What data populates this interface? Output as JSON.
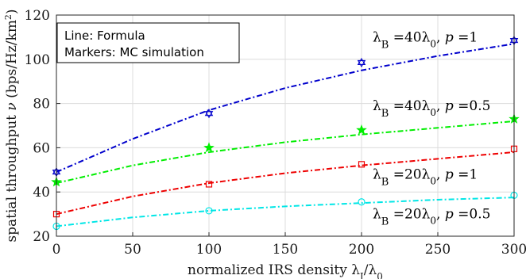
{
  "chart_data": {
    "type": "line",
    "xlabel": "normalized IRS density λ_I/λ_0",
    "ylabel": "spatial throughput ν (bps/Hz/km²)",
    "xlim": [
      0,
      300
    ],
    "ylim": [
      20,
      120
    ],
    "x_ticks": [
      0,
      50,
      100,
      150,
      200,
      250,
      300
    ],
    "y_ticks": [
      20,
      40,
      60,
      80,
      100,
      120
    ],
    "grid": true,
    "legend_box": {
      "lines": [
        "Line: Formula",
        "Markers: MC simulation"
      ],
      "placement": "top-left"
    },
    "x": [
      0,
      50,
      100,
      150,
      200,
      250,
      300
    ],
    "series": [
      {
        "name": "λB = 40λ0, p = 1",
        "color": "#0000cc",
        "marker": "hexagram",
        "formula": [
          49,
          64,
          77,
          87,
          95,
          101.5,
          107
        ],
        "mc_x": [
          0,
          100,
          200,
          300
        ],
        "mc": [
          49,
          75.5,
          98.5,
          108.5
        ]
      },
      {
        "name": "λB = 40λ0, p = 0.5",
        "color": "#00ee00",
        "marker": "pentagram",
        "formula": [
          44,
          52,
          58,
          62.5,
          66,
          69,
          72
        ],
        "mc_x": [
          0,
          100,
          200,
          300
        ],
        "mc": [
          44.5,
          60,
          68,
          73
        ]
      },
      {
        "name": "λB = 20λ0, p = 1",
        "color": "#ee0000",
        "marker": "square",
        "formula": [
          30,
          38,
          44,
          48.5,
          52,
          55,
          58
        ],
        "mc_x": [
          0,
          100,
          200,
          300
        ],
        "mc": [
          30,
          43.5,
          52.5,
          59.5
        ]
      },
      {
        "name": "λB = 20λ0, p = 0.5",
        "color": "#00e6e6",
        "marker": "circle",
        "formula": [
          24.5,
          28.5,
          31.5,
          33.5,
          35,
          36.5,
          37.5
        ],
        "mc_x": [
          0,
          100,
          200,
          300
        ],
        "mc": [
          24.5,
          31.5,
          35.5,
          38.5
        ]
      }
    ],
    "annotations": [
      {
        "series": 0,
        "label": "λB =40λ0, p =1",
        "x": 200,
        "y": 108
      },
      {
        "series": 1,
        "label": "λB =40λ0, p =0.5",
        "x": 200,
        "y": 77
      },
      {
        "series": 2,
        "label": "λB =20λ0, p =1",
        "x": 200,
        "y": 46
      },
      {
        "series": 3,
        "label": "λB =20λ0, p =0.5",
        "x": 200,
        "y": 28
      }
    ]
  }
}
